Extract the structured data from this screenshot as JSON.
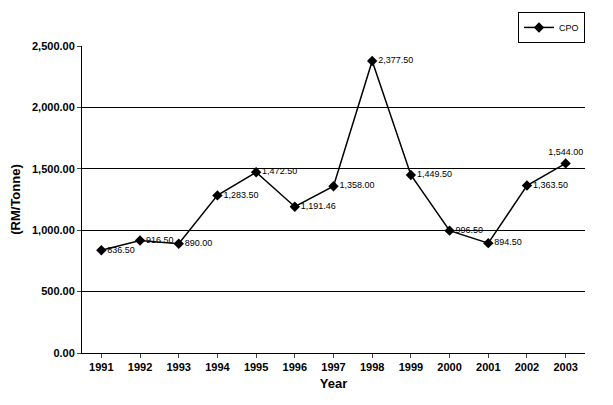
{
  "chart_data": {
    "type": "line",
    "x_label": "Year",
    "y_label": "(RM/Tonne)",
    "categories": [
      "1991",
      "1992",
      "1993",
      "1994",
      "1995",
      "1996",
      "1997",
      "1998",
      "1999",
      "2000",
      "2001",
      "2002",
      "2003"
    ],
    "series": [
      {
        "name": "CPO",
        "color": "#000000",
        "marker": "diamond",
        "line_style": "solid",
        "values": [
          836.5,
          916.5,
          890.0,
          1283.5,
          1472.5,
          1191.46,
          1358.0,
          2377.5,
          1449.5,
          996.5,
          894.5,
          1363.5,
          1544.0
        ],
        "value_labels": [
          "836.50",
          "916.50",
          "890.00",
          "1,283.50",
          "1,472.50",
          "1,191.46",
          "1,358.00",
          "2,377.50",
          "1,449.50",
          "996.50",
          "894.50",
          "1,363.50",
          "1,544.00"
        ]
      }
    ],
    "ylim": [
      0,
      2500
    ],
    "yticks": [
      {
        "value": 0,
        "label": "0.00"
      },
      {
        "value": 500,
        "label": "500.00"
      },
      {
        "value": 1000,
        "label": "1,000.00"
      },
      {
        "value": 1500,
        "label": "1,500.00"
      },
      {
        "value": 2000,
        "label": "2,000.00"
      },
      {
        "value": 2500,
        "label": "2,500.00"
      }
    ],
    "grid": true,
    "legend": "top right",
    "data_labels": true
  }
}
